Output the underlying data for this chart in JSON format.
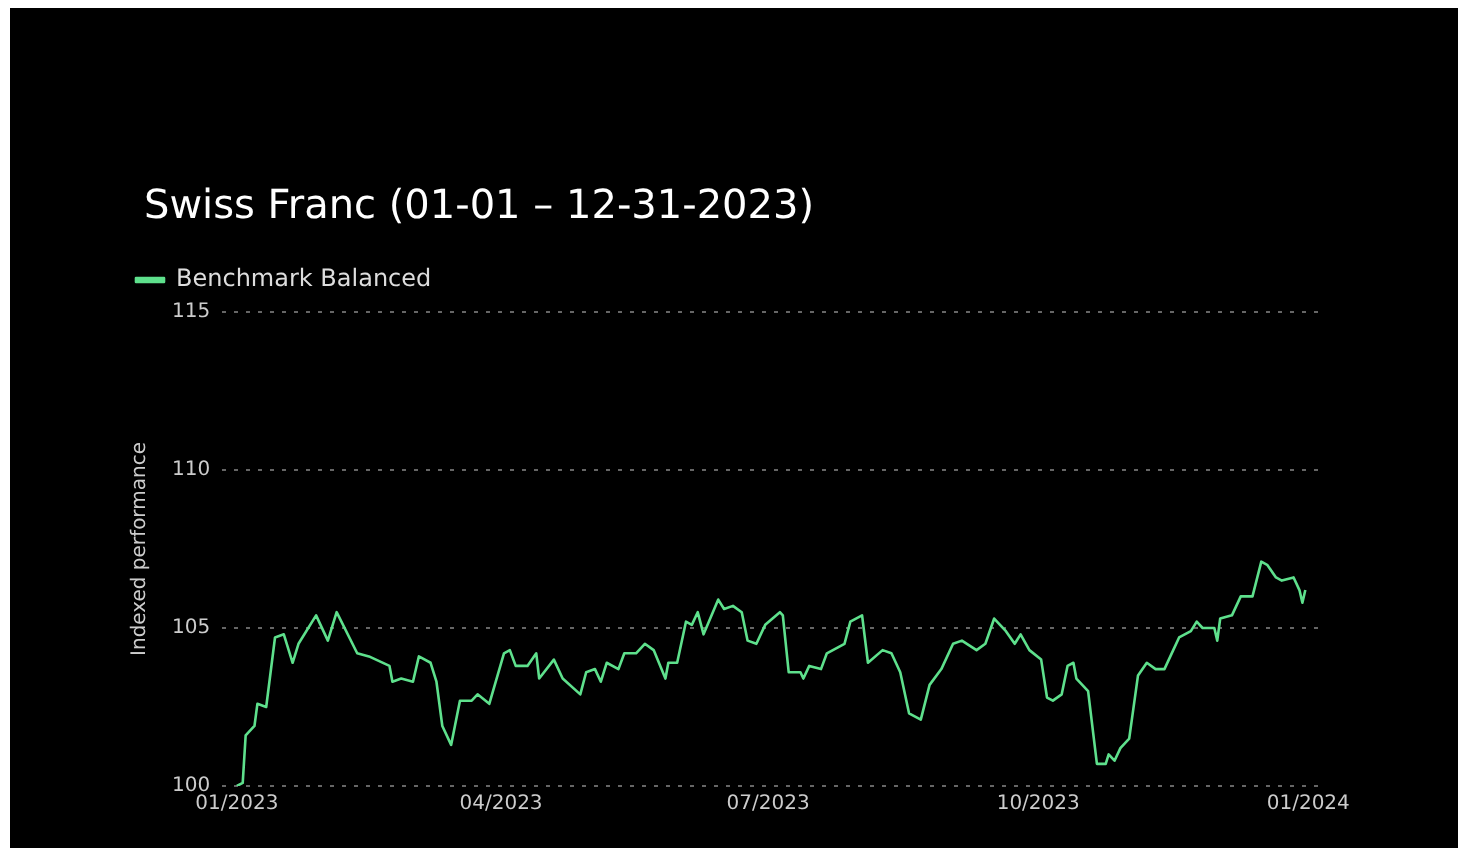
{
  "chart_data": {
    "type": "line",
    "title": "Swiss Franc (01-01 – 12-31-2023)",
    "ylabel": "Indexed performance",
    "legend": "top left",
    "grid": "y",
    "marker": "none",
    "line_style": "solid",
    "xlim": [
      "2022-12-27",
      "2024-01-05"
    ],
    "xticks": [
      {
        "value": "2023-01-01",
        "label": "01/2023"
      },
      {
        "value": "2023-04-01",
        "label": "04/2023"
      },
      {
        "value": "2023-07-01",
        "label": "07/2023"
      },
      {
        "value": "2023-10-01",
        "label": "10/2023"
      },
      {
        "value": "2024-01-01",
        "label": "01/2024"
      }
    ],
    "ylim": [
      100,
      115
    ],
    "yticks": [
      100,
      105,
      110,
      115
    ],
    "x": [
      "2023-01-01",
      "2023-01-03",
      "2023-01-04",
      "2023-01-07",
      "2023-01-08",
      "2023-01-11",
      "2023-01-14",
      "2023-01-17",
      "2023-01-20",
      "2023-01-22",
      "2023-01-28",
      "2023-02-01",
      "2023-02-04",
      "2023-02-11",
      "2023-02-15",
      "2023-02-22",
      "2023-02-23",
      "2023-02-26",
      "2023-03-02",
      "2023-03-04",
      "2023-03-08",
      "2023-03-10",
      "2023-03-12",
      "2023-03-15",
      "2023-03-18",
      "2023-03-22",
      "2023-03-24",
      "2023-03-28",
      "2023-04-02",
      "2023-04-04",
      "2023-04-06",
      "2023-04-10",
      "2023-04-13",
      "2023-04-14",
      "2023-04-19",
      "2023-04-22",
      "2023-04-28",
      "2023-04-30",
      "2023-05-03",
      "2023-05-05",
      "2023-05-07",
      "2023-05-11",
      "2023-05-13",
      "2023-05-17",
      "2023-05-20",
      "2023-05-23",
      "2023-05-27",
      "2023-05-28",
      "2023-05-31",
      "2023-06-03",
      "2023-06-05",
      "2023-06-07",
      "2023-06-09",
      "2023-06-14",
      "2023-06-16",
      "2023-06-19",
      "2023-06-22",
      "2023-06-24",
      "2023-06-27",
      "2023-06-30",
      "2023-07-05",
      "2023-07-06",
      "2023-07-08",
      "2023-07-12",
      "2023-07-13",
      "2023-07-15",
      "2023-07-19",
      "2023-07-21",
      "2023-07-27",
      "2023-07-29",
      "2023-08-02",
      "2023-08-04",
      "2023-08-09",
      "2023-08-12",
      "2023-08-15",
      "2023-08-18",
      "2023-08-22",
      "2023-08-25",
      "2023-08-29",
      "2023-09-02",
      "2023-09-05",
      "2023-09-10",
      "2023-09-13",
      "2023-09-16",
      "2023-09-20",
      "2023-09-23",
      "2023-09-25",
      "2023-09-28",
      "2023-10-02",
      "2023-10-04",
      "2023-10-06",
      "2023-10-09",
      "2023-10-11",
      "2023-10-13",
      "2023-10-14",
      "2023-10-18",
      "2023-10-21",
      "2023-10-24",
      "2023-10-25",
      "2023-10-27",
      "2023-10-29",
      "2023-11-01",
      "2023-11-04",
      "2023-11-07",
      "2023-11-10",
      "2023-11-13",
      "2023-11-16",
      "2023-11-18",
      "2023-11-22",
      "2023-11-24",
      "2023-11-26",
      "2023-11-30",
      "2023-12-01",
      "2023-12-02",
      "2023-12-06",
      "2023-12-09",
      "2023-12-13",
      "2023-12-16",
      "2023-12-18",
      "2023-12-21",
      "2023-12-23",
      "2023-12-27",
      "2023-12-29",
      "2023-12-30",
      "2023-12-31"
    ],
    "series": [
      {
        "name": "Benchmark Balanced",
        "color": "#5ee08c",
        "values": [
          100.0,
          100.1,
          101.6,
          101.9,
          102.6,
          102.5,
          104.7,
          104.8,
          103.9,
          104.5,
          105.4,
          104.6,
          105.5,
          104.2,
          104.1,
          103.8,
          103.3,
          103.4,
          103.3,
          104.1,
          103.9,
          103.3,
          101.9,
          101.3,
          102.7,
          102.7,
          102.9,
          102.6,
          104.2,
          104.3,
          103.8,
          103.8,
          104.2,
          103.4,
          104.0,
          103.4,
          102.9,
          103.6,
          103.7,
          103.3,
          103.9,
          103.7,
          104.2,
          104.2,
          104.5,
          104.3,
          103.4,
          103.9,
          103.9,
          105.2,
          105.1,
          105.5,
          104.8,
          105.9,
          105.6,
          105.7,
          105.5,
          104.6,
          104.5,
          105.1,
          105.5,
          105.4,
          103.6,
          103.6,
          103.4,
          103.8,
          103.7,
          104.2,
          104.5,
          105.2,
          105.4,
          103.9,
          104.3,
          104.2,
          103.6,
          102.3,
          102.1,
          103.2,
          103.7,
          104.5,
          104.6,
          104.3,
          104.5,
          105.3,
          104.9,
          104.5,
          104.8,
          104.3,
          104.0,
          102.8,
          102.7,
          102.9,
          103.8,
          103.9,
          103.4,
          103.0,
          100.7,
          100.7,
          101.0,
          100.8,
          101.2,
          101.5,
          103.5,
          103.9,
          103.7,
          103.7,
          104.3,
          104.7,
          104.9,
          105.2,
          105.0,
          105.0,
          104.6,
          105.3,
          105.4,
          106.0,
          106.0,
          107.1,
          107.0,
          106.6,
          106.5,
          106.6,
          106.2,
          105.8,
          106.2
        ]
      }
    ]
  }
}
